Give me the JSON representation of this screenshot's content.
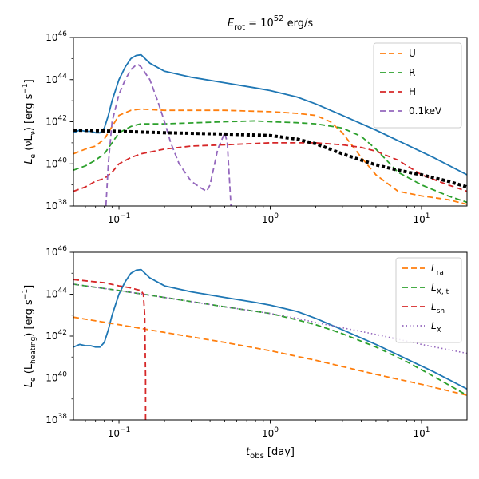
{
  "chart_data": [
    {
      "type": "line",
      "title": "E_rot = 10^52 erg/s",
      "title_parts": {
        "base": "E",
        "sub": "rot",
        "eq": " = 10",
        "sup": "52",
        "unit": " erg/s"
      },
      "xlabel": "",
      "ylabel": "L_e (νL_ν) [erg s^-1]",
      "ylabel_parts": {
        "a": "L",
        "a_sub": "e",
        "b": " (νL",
        "b_sub": "ν",
        "c": ") [erg s",
        "c_sup": "−1",
        "d": "]"
      },
      "xscale": "log",
      "yscale": "log",
      "xlim": [
        0.05,
        20
      ],
      "ylim": [
        1e+38,
        1e+46
      ],
      "x_ticks": [
        {
          "value": 0.1,
          "base": "10",
          "exp": "−1"
        },
        {
          "value": 1,
          "base": "10",
          "exp": "0"
        },
        {
          "value": 10,
          "base": "10",
          "exp": "1"
        }
      ],
      "y_ticks": [
        {
          "value": 1e+38,
          "base": "10",
          "exp": "38"
        },
        {
          "value": 1e+40,
          "base": "10",
          "exp": "40"
        },
        {
          "value": 1e+42,
          "base": "10",
          "exp": "42"
        },
        {
          "value": 1e+44,
          "base": "10",
          "exp": "44"
        },
        {
          "value": 1e+46,
          "base": "10",
          "exp": "46"
        }
      ],
      "legend_position": "top-right",
      "series": [
        {
          "name": "total",
          "color": "#1f77b4",
          "style": "solid",
          "in_legend": false,
          "x": [
            0.05,
            0.055,
            0.06,
            0.065,
            0.07,
            0.075,
            0.08,
            0.085,
            0.09,
            0.1,
            0.11,
            0.12,
            0.13,
            0.14,
            0.16,
            0.2,
            0.3,
            0.5,
            0.8,
            1,
            1.5,
            2,
            3,
            5,
            8,
            12,
            20
          ],
          "y": [
            3e+41,
            4e+41,
            3.5e+41,
            3.5e+41,
            3e+41,
            3e+41,
            5e+41,
            2e+42,
            1e+43,
            1e+44,
            4e+44,
            1e+45,
            1.4e+45,
            1.5e+45,
            6e+44,
            2.5e+44,
            1.3e+44,
            7e+43,
            4e+43,
            3e+43,
            1.5e+43,
            7e+42,
            2e+42,
            4e+41,
            8e+40,
            2e+40,
            3e+39
          ]
        },
        {
          "name": "U",
          "color": "#ff7f0e",
          "style": "dashed",
          "in_legend": true,
          "x": [
            0.05,
            0.06,
            0.07,
            0.08,
            0.09,
            0.1,
            0.12,
            0.14,
            0.2,
            0.5,
            1,
            1.5,
            2,
            2.5,
            3,
            4,
            5,
            7,
            10,
            15,
            20
          ],
          "y": [
            3e+40,
            5e+40,
            7e+40,
            1.5e+41,
            6e+41,
            2e+42,
            3.5e+42,
            4e+42,
            3.5e+42,
            3.5e+42,
            3e+42,
            2.5e+42,
            2e+42,
            1e+42,
            3e+41,
            2e+40,
            3e+39,
            5e+38,
            3e+38,
            2e+38,
            1.2e+38
          ]
        },
        {
          "name": "R",
          "color": "#2ca02c",
          "style": "dashed",
          "in_legend": true,
          "x": [
            0.05,
            0.06,
            0.07,
            0.08,
            0.09,
            0.1,
            0.12,
            0.14,
            0.2,
            0.5,
            0.8,
            1,
            1.5,
            2,
            3,
            4,
            5,
            7,
            10,
            15,
            20
          ],
          "y": [
            5e+39,
            8e+39,
            1.5e+40,
            3e+40,
            1e+41,
            3e+41,
            6e+41,
            8e+41,
            8e+41,
            1e+42,
            1.1e+42,
            1e+42,
            9e+41,
            8e+41,
            5e+41,
            2e+41,
            5e+40,
            4e+39,
            1e+39,
            3e+38,
            1.5e+38
          ]
        },
        {
          "name": "H",
          "color": "#d62728",
          "style": "dashed",
          "in_legend": true,
          "x": [
            0.05,
            0.06,
            0.07,
            0.08,
            0.09,
            0.1,
            0.12,
            0.14,
            0.2,
            0.3,
            0.5,
            1,
            1.5,
            2,
            3,
            4,
            5,
            7,
            10,
            15,
            20
          ],
          "y": [
            5e+38,
            8e+38,
            1.5e+39,
            2e+39,
            4e+39,
            1e+40,
            2e+40,
            3e+40,
            5e+40,
            7e+40,
            8e+40,
            1e+41,
            1e+41,
            1e+41,
            8e+40,
            6e+40,
            4e+40,
            1.5e+40,
            3e+39,
            1e+39,
            5e+38
          ]
        },
        {
          "name": "0.1keV",
          "color": "#9467bd",
          "style": "dashed",
          "in_legend": true,
          "x": [
            0.082,
            0.085,
            0.09,
            0.1,
            0.11,
            0.12,
            0.13,
            0.135,
            0.14,
            0.16,
            0.18,
            0.2,
            0.22,
            0.25,
            0.3,
            0.35,
            0.38,
            0.4,
            0.45,
            0.5,
            0.52,
            0.54,
            0.55
          ],
          "y": [
            1e+38,
            1e+40,
            1e+42,
            2e+43,
            1e+44,
            3e+44,
            5e+44,
            5e+44,
            4e+44,
            1e+44,
            1e+43,
            1e+42,
            1e+41,
            1e+40,
            1.5e+39,
            7e+38,
            5e+38,
            1e+39,
            5e+40,
            3e+41,
            1e+41,
            1e+39,
            1e+38
          ]
        },
        {
          "name": "threshold",
          "color": "#000000",
          "style": "dotted",
          "in_legend": false,
          "x": [
            0.05,
            0.1,
            0.2,
            0.5,
            1,
            1.5,
            2,
            3,
            4,
            5,
            7,
            10,
            15,
            20
          ],
          "y": [
            4e+41,
            3.5e+41,
            3e+41,
            2.6e+41,
            2.2e+41,
            1.5e+41,
            9e+40,
            3e+40,
            1.5e+40,
            9e+39,
            5e+39,
            3e+39,
            1.5e+39,
            8e+38
          ]
        }
      ]
    },
    {
      "type": "line",
      "title": "",
      "xlabel": "t_obs [day]",
      "xlabel_parts": {
        "a": "t",
        "a_sub": "obs",
        "b": " [day]"
      },
      "ylabel": "L_e (L_heating) [erg s^-1]",
      "ylabel_parts": {
        "a": "L",
        "a_sub": "e",
        "b": " (L",
        "b_sub": "heating",
        "c": ") [erg s",
        "c_sup": "−1",
        "d": "]"
      },
      "xscale": "log",
      "yscale": "log",
      "xlim": [
        0.05,
        20
      ],
      "ylim": [
        1e+38,
        1e+46
      ],
      "x_ticks": [
        {
          "value": 0.1,
          "base": "10",
          "exp": "−1"
        },
        {
          "value": 1,
          "base": "10",
          "exp": "0"
        },
        {
          "value": 10,
          "base": "10",
          "exp": "1"
        }
      ],
      "y_ticks": [
        {
          "value": 1e+38,
          "base": "10",
          "exp": "38"
        },
        {
          "value": 1e+40,
          "base": "10",
          "exp": "40"
        },
        {
          "value": 1e+42,
          "base": "10",
          "exp": "42"
        },
        {
          "value": 1e+44,
          "base": "10",
          "exp": "44"
        },
        {
          "value": 1e+46,
          "base": "10",
          "exp": "46"
        }
      ],
      "legend_position": "top-right",
      "series": [
        {
          "name": "total",
          "color": "#1f77b4",
          "style": "solid",
          "in_legend": false,
          "x": [
            0.05,
            0.055,
            0.06,
            0.065,
            0.07,
            0.075,
            0.08,
            0.085,
            0.09,
            0.1,
            0.11,
            0.12,
            0.13,
            0.14,
            0.16,
            0.2,
            0.3,
            0.5,
            0.8,
            1,
            1.5,
            2,
            3,
            5,
            8,
            12,
            20
          ],
          "y": [
            3e+41,
            4e+41,
            3.5e+41,
            3.5e+41,
            3e+41,
            3e+41,
            5e+41,
            2e+42,
            1e+43,
            1e+44,
            4e+44,
            1e+45,
            1.4e+45,
            1.5e+45,
            6e+44,
            2.5e+44,
            1.3e+44,
            7e+43,
            4e+43,
            3e+43,
            1.5e+43,
            7e+42,
            2e+42,
            4e+41,
            8e+40,
            2e+40,
            3e+39
          ]
        },
        {
          "name": "L_ra",
          "label_base": "L",
          "label_sub": "ra",
          "color": "#ff7f0e",
          "style": "dashed",
          "in_legend": true,
          "x": [
            0.05,
            0.1,
            0.2,
            0.5,
            1,
            2,
            5,
            10,
            20
          ],
          "y": [
            8e+42,
            3.5e+42,
            1.5e+42,
            5e+41,
            2e+41,
            7e+40,
            1.5e+40,
            5e+39,
            1.5e+39
          ]
        },
        {
          "name": "L_X,t",
          "label_base": "L",
          "label_sub": "X, t",
          "color": "#2ca02c",
          "style": "dashed",
          "in_legend": true,
          "x": [
            0.05,
            0.1,
            0.2,
            0.5,
            1,
            1.5,
            2,
            3,
            5,
            8,
            12,
            20
          ],
          "y": [
            3e+44,
            1.5e+44,
            7e+43,
            2.5e+43,
            1.2e+43,
            6e+42,
            3.5e+42,
            1.3e+42,
            3e+41,
            6e+40,
            1.2e+40,
            1.5e+39
          ]
        },
        {
          "name": "L_sh",
          "label_base": "L",
          "label_sub": "sh",
          "color": "#d62728",
          "style": "dashed",
          "in_legend": true,
          "x": [
            0.05,
            0.08,
            0.1,
            0.12,
            0.13,
            0.14,
            0.145,
            0.148,
            0.15,
            0.15
          ],
          "y": [
            5e+44,
            3.5e+44,
            2.5e+44,
            2e+44,
            1.7e+44,
            1.5e+44,
            1e+44,
            1e+43,
            1e+40,
            1e+38
          ]
        },
        {
          "name": "L_X",
          "label_base": "L",
          "label_sub": "X",
          "color": "#9467bd",
          "style": "dotted",
          "in_legend": true,
          "x": [
            0.05,
            0.1,
            0.2,
            0.5,
            1,
            1.5,
            2,
            3,
            5,
            10,
            20
          ],
          "y": [
            3e+44,
            1.5e+44,
            7e+43,
            2.5e+43,
            1.2e+43,
            7e+42,
            4.5e+42,
            2.5e+42,
            1.2e+42,
            4e+41,
            1.5e+41
          ]
        }
      ]
    }
  ]
}
